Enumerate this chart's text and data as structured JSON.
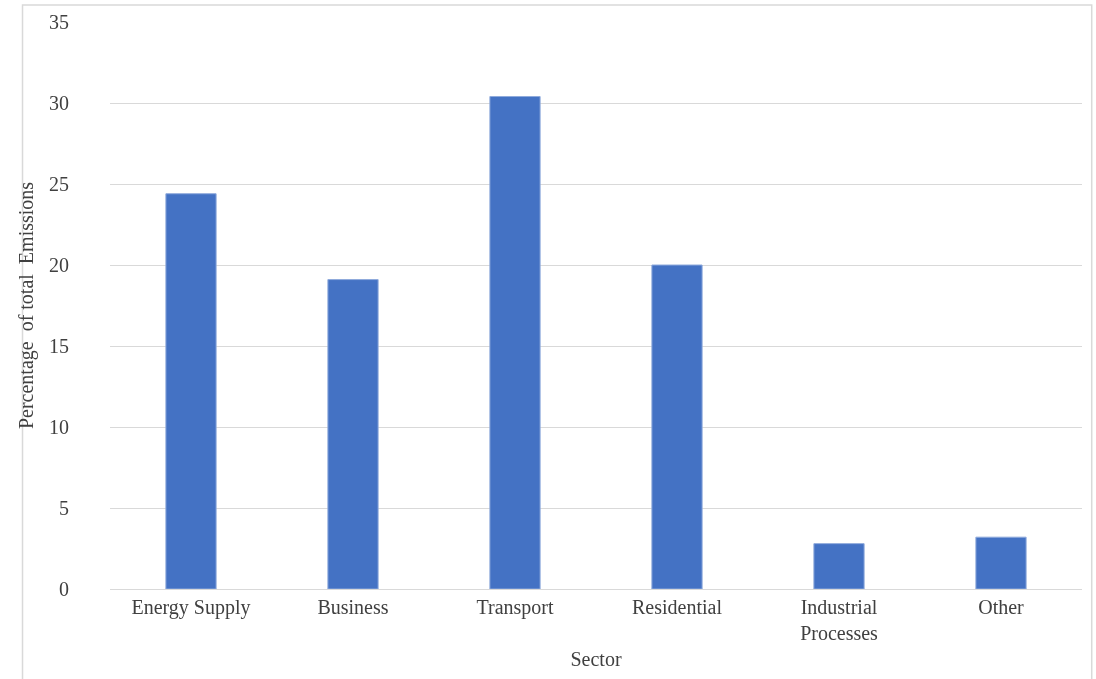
{
  "chart_data": {
    "type": "bar",
    "xlabel": "Sector",
    "ylabel": "Percentage  of total  Emissions",
    "categories": [
      "Energy Supply",
      "Business",
      "Transport",
      "Residential",
      "Industrial Processes",
      "Other"
    ],
    "values": [
      24.4,
      19.1,
      30.4,
      20.0,
      2.8,
      3.2
    ],
    "color": "#4472c4",
    "ylim": [
      0,
      35
    ],
    "yticks": [
      0,
      5,
      10,
      15,
      20,
      25,
      30,
      35
    ],
    "grid": "y",
    "legend": false
  }
}
